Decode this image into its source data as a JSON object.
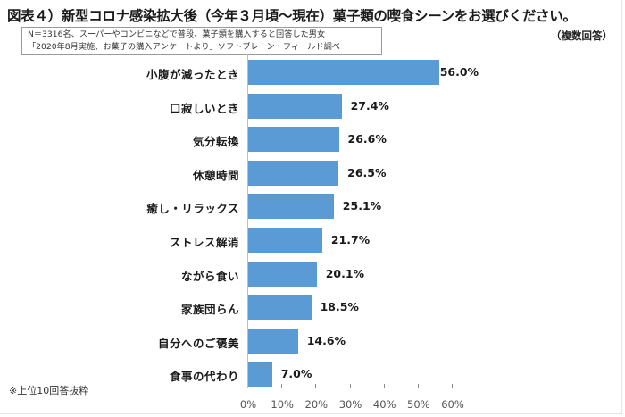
{
  "title": "図表４）新型コロナ感染拡大後（今年３月頃～現在）菓子類の喫食シーンをお選びください。",
  "note": {
    "line1": "N＝3316名、スーパーやコンビニなどで普段、菓子類を購入すると回答した男女",
    "line2": "「2020年8月実施、お菓子の購入アンケートより」ソフトブレーン・フィールド調べ"
  },
  "multiple_answer_label": "（複数回答）",
  "footnote": "※上位10回答抜粋",
  "bar_color": "#5b9bd5",
  "chart_data": {
    "type": "bar",
    "orientation": "horizontal",
    "title": "図表４）新型コロナ感染拡大後（今年３月頃～現在）菓子類の喫食シーンをお選びください。",
    "xlabel": "",
    "ylabel": "",
    "xlim": [
      0,
      60
    ],
    "grid": false,
    "legend": null,
    "categories": [
      "小腹が減ったとき",
      "口寂しいとき",
      "気分転換",
      "休憩時間",
      "癒し・リラックス",
      "ストレス解消",
      "ながら食い",
      "家族団らん",
      "自分へのご褒美",
      "食事の代わり"
    ],
    "values": [
      56.0,
      27.4,
      26.6,
      26.5,
      25.1,
      21.7,
      20.1,
      18.5,
      14.6,
      7.0
    ],
    "value_labels": [
      "56.0%",
      "27.4%",
      "26.6%",
      "26.5%",
      "25.1%",
      "21.7%",
      "20.1%",
      "18.5%",
      "14.6%",
      "7.0%"
    ],
    "tick_labels": [
      "0%",
      "10%",
      "20%",
      "30%",
      "40%",
      "50%",
      "60%"
    ],
    "annotations": [
      "（複数回答）",
      "※上位10回答抜粋"
    ]
  }
}
